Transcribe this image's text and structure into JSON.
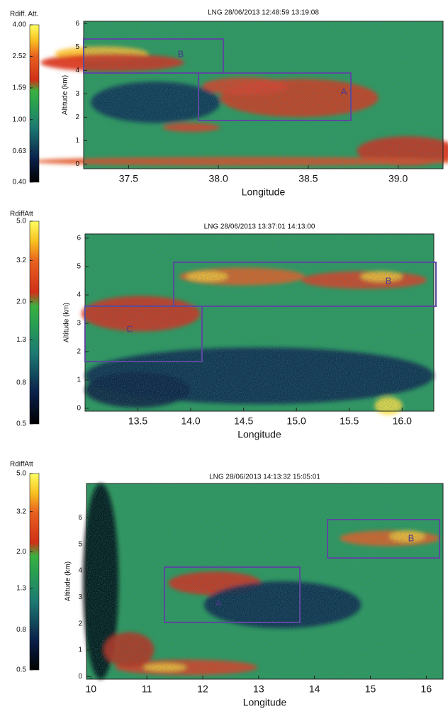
{
  "chart_data": [
    {
      "type": "heatmap",
      "title": "LNG 28/06/2013 12:48:59 13:19:08",
      "xlabel": "Longitude",
      "ylabel": "Altitude (km)",
      "colorbar_label": "Rdiff. Att.",
      "colorbar_log": true,
      "clim": [
        0.4,
        4.0
      ],
      "cticks": [
        {
          "value": 0.4,
          "label": "0.40"
        },
        0.63,
        {
          "value": 1.0,
          "label": "1.00"
        },
        1.59,
        2.52,
        {
          "value": 4.0,
          "label": "4.00"
        }
      ],
      "xlim": [
        37.25,
        39.25
      ],
      "xticks": [
        37.5,
        {
          "value": 38.0,
          "label": "38.0"
        },
        38.5,
        {
          "value": 39.0,
          "label": "39.0"
        }
      ],
      "ylim": [
        -0.2,
        6.1
      ],
      "yticks": [
        0,
        1,
        2,
        3,
        4,
        5,
        6
      ],
      "annotations": [
        "B",
        "A"
      ]
    },
    {
      "type": "heatmap",
      "title": "LNG 28/06/2013 13:37:01 14:13:00",
      "xlabel": "Longitude",
      "ylabel": "Altitude (km)",
      "colorbar_label": "RdiffAtt",
      "colorbar_log": true,
      "clim": [
        0.5,
        5.0
      ],
      "cticks": [
        0.5,
        0.8,
        1.3,
        {
          "value": 2.0,
          "label": "2.0"
        },
        3.2,
        {
          "value": 5.0,
          "label": "5.0"
        }
      ],
      "xlim": [
        13.0,
        16.3
      ],
      "xticks": [
        13.5,
        {
          "value": 14.0,
          "label": "14.0"
        },
        14.5,
        {
          "value": 15.0,
          "label": "15.0"
        },
        15.5,
        {
          "value": 16.0,
          "label": "16.0"
        }
      ],
      "ylim": [
        -0.1,
        6.15
      ],
      "yticks": [
        0,
        1,
        2,
        3,
        4,
        5,
        6
      ],
      "annotations": [
        "B",
        "C"
      ]
    },
    {
      "type": "heatmap",
      "title": "LNG 28/06/2013 14:13:32 15:05:01",
      "xlabel": "Longitude",
      "ylabel": "Altitude (km)",
      "colorbar_label": "RdiffAtt",
      "colorbar_log": true,
      "clim": [
        0.5,
        5.0
      ],
      "cticks": [
        0.5,
        0.8,
        1.3,
        {
          "value": 2.0,
          "label": "2.0"
        },
        3.2,
        {
          "value": 5.0,
          "label": "5.0"
        }
      ],
      "xlim": [
        9.92,
        16.3
      ],
      "xticks": [
        10,
        11,
        12,
        13,
        14,
        15,
        16
      ],
      "ylim": [
        -0.1,
        7.3
      ],
      "yticks": [
        0,
        1,
        2,
        3,
        4,
        5,
        6
      ],
      "annotations": [
        "A",
        "B"
      ]
    }
  ]
}
